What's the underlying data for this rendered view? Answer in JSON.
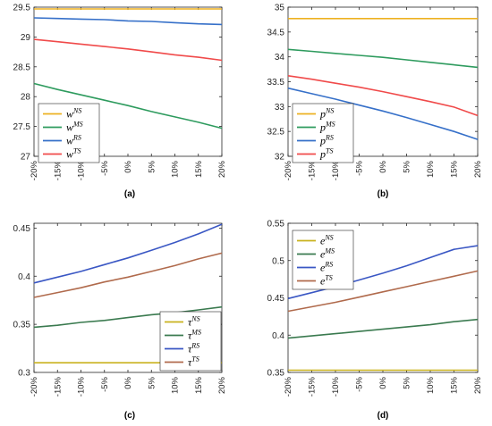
{
  "chart_data": [
    {
      "type": "line",
      "caption": "(a)",
      "x": [
        "-20%",
        "-15%",
        "-10%",
        "-5%",
        "0%",
        "5%",
        "10%",
        "15%",
        "20%"
      ],
      "ylim": [
        27,
        29.5
      ],
      "yticks": [
        "27",
        "27.5",
        "28",
        "28.5",
        "29",
        "29.5"
      ],
      "legend_position": "bottom-left",
      "series": [
        {
          "name": "w",
          "sup": "NS",
          "color": "#EDB120",
          "values": [
            29.47,
            29.47,
            29.47,
            29.47,
            29.47,
            29.47,
            29.47,
            29.47,
            29.47
          ]
        },
        {
          "name": "w",
          "sup": "MS",
          "color": "#2E9B5E",
          "values": [
            28.22,
            28.12,
            28.03,
            27.94,
            27.85,
            27.75,
            27.66,
            27.57,
            27.47
          ]
        },
        {
          "name": "w",
          "sup": "RS",
          "color": "#3670C9",
          "values": [
            29.32,
            29.31,
            29.3,
            29.29,
            29.27,
            29.26,
            29.24,
            29.22,
            29.21
          ]
        },
        {
          "name": "w",
          "sup": "TS",
          "color": "#F04A4A",
          "values": [
            28.96,
            28.92,
            28.88,
            28.84,
            28.8,
            28.75,
            28.7,
            28.66,
            28.61
          ]
        }
      ]
    },
    {
      "type": "line",
      "caption": "(b)",
      "x": [
        "-20%",
        "-15%",
        "-10%",
        "-5%",
        "0%",
        "5%",
        "10%",
        "15%",
        "20%"
      ],
      "ylim": [
        32,
        35
      ],
      "yticks": [
        "32",
        "32.5",
        "33",
        "33.5",
        "34",
        "34.5",
        "35"
      ],
      "legend_position": "bottom-left",
      "series": [
        {
          "name": "p",
          "sup": "NS",
          "color": "#EDB120",
          "values": [
            34.77,
            34.77,
            34.77,
            34.77,
            34.77,
            34.77,
            34.77,
            34.77,
            34.77
          ]
        },
        {
          "name": "p",
          "sup": "MS",
          "color": "#2E9B5E",
          "values": [
            34.15,
            34.11,
            34.07,
            34.03,
            33.99,
            33.94,
            33.89,
            33.84,
            33.79
          ]
        },
        {
          "name": "p",
          "sup": "RS",
          "color": "#3670C9",
          "values": [
            33.37,
            33.26,
            33.15,
            33.03,
            32.91,
            32.78,
            32.64,
            32.5,
            32.34
          ]
        },
        {
          "name": "p",
          "sup": "TS",
          "color": "#F04A4A",
          "values": [
            33.62,
            33.55,
            33.47,
            33.39,
            33.3,
            33.2,
            33.1,
            32.99,
            32.82
          ]
        }
      ]
    },
    {
      "type": "line",
      "caption": "(c)",
      "x": [
        "-20%",
        "-15%",
        "-10%",
        "-5%",
        "0%",
        "5%",
        "10%",
        "15%",
        "20%"
      ],
      "ylim": [
        0.3,
        0.455
      ],
      "yticks": [
        "0.3",
        "0.35",
        "0.4",
        "0.45"
      ],
      "legend_position": "bottom-right",
      "series": [
        {
          "name": "τ",
          "sup": "NS",
          "color": "#C9B21E",
          "values": [
            0.31,
            0.31,
            0.31,
            0.31,
            0.31,
            0.31,
            0.31,
            0.31,
            0.31
          ]
        },
        {
          "name": "τ",
          "sup": "MS",
          "color": "#3A7A4F",
          "values": [
            0.347,
            0.349,
            0.352,
            0.354,
            0.357,
            0.36,
            0.362,
            0.365,
            0.368
          ]
        },
        {
          "name": "τ",
          "sup": "RS",
          "color": "#3A57C4",
          "values": [
            0.393,
            0.399,
            0.405,
            0.412,
            0.419,
            0.427,
            0.435,
            0.444,
            0.454
          ]
        },
        {
          "name": "τ",
          "sup": "TS",
          "color": "#B06A4C",
          "values": [
            0.378,
            0.383,
            0.388,
            0.394,
            0.399,
            0.405,
            0.411,
            0.418,
            0.424
          ]
        }
      ]
    },
    {
      "type": "line",
      "caption": "(d)",
      "x": [
        "-20%",
        "-15%",
        "-10%",
        "-5%",
        "0%",
        "5%",
        "10%",
        "15%",
        "20%"
      ],
      "ylim": [
        0.35,
        0.55
      ],
      "yticks": [
        "0.35",
        "0.4",
        "0.45",
        "0.5",
        "0.55"
      ],
      "legend_position": "top-left",
      "series": [
        {
          "name": "e",
          "sup": "NS",
          "color": "#C9B21E",
          "values": [
            0.353,
            0.353,
            0.353,
            0.353,
            0.353,
            0.353,
            0.353,
            0.353,
            0.353
          ]
        },
        {
          "name": "e",
          "sup": "MS",
          "color": "#3A7A4F",
          "values": [
            0.396,
            0.399,
            0.402,
            0.405,
            0.408,
            0.411,
            0.414,
            0.418,
            0.421
          ]
        },
        {
          "name": "e",
          "sup": "RS",
          "color": "#3A57C4",
          "values": [
            0.449,
            0.457,
            0.465,
            0.474,
            0.483,
            0.493,
            0.504,
            0.515,
            0.52
          ]
        },
        {
          "name": "e",
          "sup": "TS",
          "color": "#B06A4C",
          "values": [
            0.432,
            0.438,
            0.444,
            0.451,
            0.458,
            0.465,
            0.472,
            0.479,
            0.486
          ]
        }
      ]
    }
  ]
}
